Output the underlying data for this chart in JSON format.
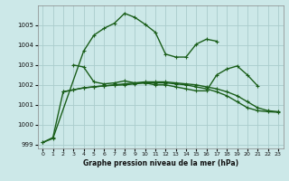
{
  "line1": {
    "x": [
      0,
      1,
      4,
      5,
      6,
      7,
      8,
      9,
      10,
      11,
      12,
      13,
      14,
      15,
      16,
      17
    ],
    "y": [
      999.1,
      999.3,
      1003.7,
      1004.5,
      1004.85,
      1005.1,
      1005.6,
      1005.4,
      1005.05,
      1004.65,
      1003.55,
      1003.4,
      1003.4,
      1004.05,
      1004.3,
      1004.2
    ]
  },
  "line2": {
    "x": [
      3,
      4,
      5,
      6,
      7,
      8,
      9,
      10,
      11,
      12,
      13,
      14,
      15,
      16,
      17,
      18,
      19,
      20,
      21
    ],
    "y": [
      1003.0,
      1002.9,
      1002.15,
      1002.05,
      1002.1,
      1002.2,
      1002.1,
      1002.1,
      1002.0,
      1002.0,
      1001.9,
      1001.8,
      1001.7,
      1001.7,
      1002.5,
      1002.8,
      1002.95,
      1002.5,
      1001.95
    ]
  },
  "line3": {
    "x": [
      2,
      3,
      4,
      5,
      6,
      7,
      8,
      9,
      10,
      11,
      12,
      13,
      14,
      15,
      16,
      17,
      18,
      19,
      20,
      21,
      22,
      23
    ],
    "y": [
      1001.65,
      1001.75,
      1001.85,
      1001.9,
      1001.95,
      1002.0,
      1002.05,
      1002.1,
      1002.15,
      1002.15,
      1002.15,
      1002.1,
      1002.05,
      1002.0,
      1001.9,
      1001.8,
      1001.65,
      1001.45,
      1001.15,
      1000.85,
      1000.7,
      1000.65
    ]
  },
  "line4": {
    "x": [
      0,
      1,
      2,
      3,
      4,
      5,
      6,
      7,
      8,
      9,
      10,
      11,
      12,
      13,
      14,
      15,
      16,
      17,
      18,
      19,
      20,
      21,
      22,
      23
    ],
    "y": [
      999.1,
      999.35,
      1001.65,
      1001.75,
      1001.85,
      1001.9,
      1001.95,
      1001.98,
      1002.0,
      1002.05,
      1002.1,
      1002.1,
      1002.1,
      1002.05,
      1002.0,
      1001.9,
      1001.8,
      1001.65,
      1001.45,
      1001.15,
      1000.85,
      1000.7,
      1000.65,
      1000.62
    ]
  },
  "bg_color": "#cce8e8",
  "grid_color": "#aacccc",
  "line_color": "#1a5e1a",
  "xlabel": "Graphe pression niveau de la mer (hPa)",
  "ylim": [
    998.8,
    1006.0
  ],
  "xlim": [
    -0.5,
    23.5
  ],
  "yticks": [
    999,
    1000,
    1001,
    1002,
    1003,
    1004,
    1005
  ],
  "xticks": [
    0,
    1,
    2,
    3,
    4,
    5,
    6,
    7,
    8,
    9,
    10,
    11,
    12,
    13,
    14,
    15,
    16,
    17,
    18,
    19,
    20,
    21,
    22,
    23
  ]
}
